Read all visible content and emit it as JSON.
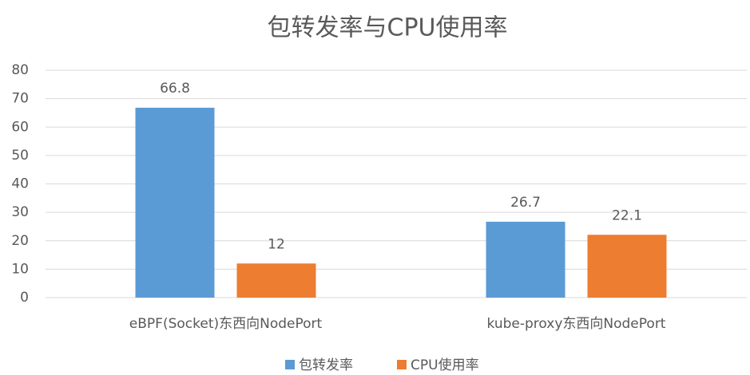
{
  "chart_data": {
    "type": "bar",
    "title": "包转发率与CPU使用率",
    "categories": [
      "eBPF(Socket)东西向NodePort",
      "kube-proxy东西向NodePort"
    ],
    "series": [
      {
        "name": "包转发率",
        "color": "#5b9bd5",
        "values": [
          66.8,
          26.7
        ]
      },
      {
        "name": "CPU使用率",
        "color": "#ed7d31",
        "values": [
          12,
          22.1
        ]
      }
    ],
    "ylim": [
      0,
      80
    ],
    "yticks": [
      0,
      10,
      20,
      30,
      40,
      50,
      60,
      70,
      80
    ],
    "grid": true,
    "legend": "bottom"
  }
}
